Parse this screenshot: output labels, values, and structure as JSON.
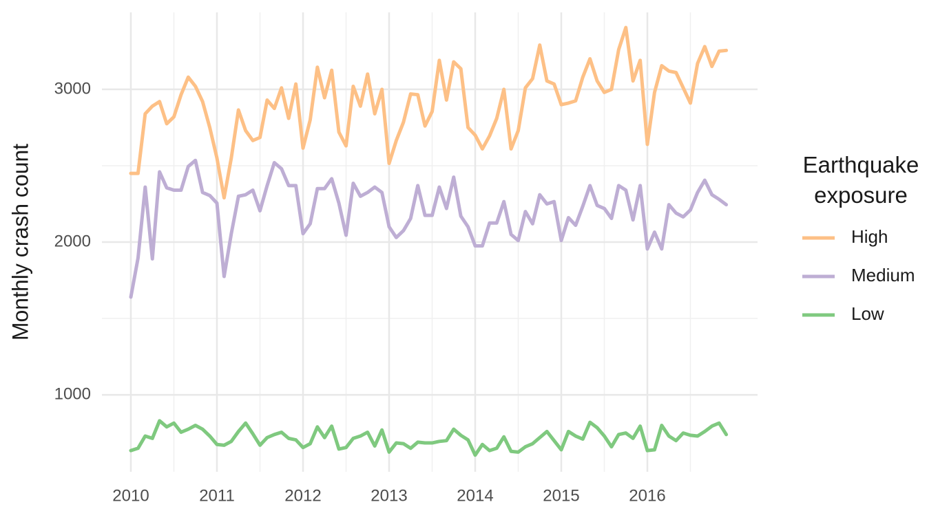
{
  "chart_data": {
    "type": "line",
    "ylabel": "Monthly crash count",
    "legend_title": "Earthquake exposure",
    "legend_position": "right",
    "grid": true,
    "xlim": [
      2009.664,
      2017.28
    ],
    "xticks": [
      2010,
      2011,
      2012,
      2013,
      2014,
      2015,
      2016
    ],
    "xminorticks": [
      2010.5,
      2011.5,
      2012.5,
      2013.5,
      2014.5,
      2015.5,
      2016.5
    ],
    "ylim": [
      496,
      3504
    ],
    "yticks": [
      1000,
      2000,
      3000
    ],
    "yminorticks": [
      1500,
      2500
    ],
    "x": [
      2010,
      2010.0833,
      2010.1667,
      2010.25,
      2010.3333,
      2010.4167,
      2010.5,
      2010.5833,
      2010.6667,
      2010.75,
      2010.8333,
      2010.9167,
      2011,
      2011.0833,
      2011.1667,
      2011.25,
      2011.3333,
      2011.4167,
      2011.5,
      2011.5833,
      2011.6667,
      2011.75,
      2011.8333,
      2011.9167,
      2012,
      2012.0833,
      2012.1667,
      2012.25,
      2012.3333,
      2012.4167,
      2012.5,
      2012.5833,
      2012.6667,
      2012.75,
      2012.8333,
      2012.9167,
      2013,
      2013.0833,
      2013.1667,
      2013.25,
      2013.3333,
      2013.4167,
      2013.5,
      2013.5833,
      2013.6667,
      2013.75,
      2013.8333,
      2013.9167,
      2014,
      2014.0833,
      2014.1667,
      2014.25,
      2014.3333,
      2014.4167,
      2014.5,
      2014.5833,
      2014.6667,
      2014.75,
      2014.8333,
      2014.9167,
      2015,
      2015.0833,
      2015.1667,
      2015.25,
      2015.3333,
      2015.4167,
      2015.5,
      2015.5833,
      2015.6667,
      2015.75,
      2015.8333,
      2015.9167,
      2016,
      2016.0833,
      2016.1667,
      2016.25,
      2016.3333,
      2016.4167,
      2016.5,
      2016.5833,
      2016.6667,
      2016.75,
      2016.8333,
      2016.9167
    ],
    "series": [
      {
        "name": "High",
        "color": "#fdc086",
        "values": [
          2450,
          2450,
          2840,
          2890,
          2920,
          2775,
          2820,
          2965,
          3080,
          3020,
          2920,
          2750,
          2550,
          2290,
          2550,
          2865,
          2730,
          2665,
          2685,
          2930,
          2875,
          3010,
          2810,
          3035,
          2615,
          2800,
          3145,
          2945,
          3125,
          2720,
          2630,
          3020,
          2890,
          3100,
          2840,
          3000,
          2515,
          2665,
          2785,
          2970,
          2965,
          2760,
          2855,
          3190,
          2930,
          3180,
          3135,
          2750,
          2700,
          2610,
          2695,
          2810,
          3000,
          2610,
          2730,
          3010,
          3070,
          3290,
          3055,
          3035,
          2900,
          2910,
          2925,
          3080,
          3200,
          3055,
          2980,
          3000,
          3260,
          3405,
          3055,
          3190,
          2640,
          2980,
          3155,
          3120,
          3110,
          3010,
          2910,
          3170,
          3280,
          3150,
          3250,
          3255
        ]
      },
      {
        "name": "Medium",
        "color": "#beaed4",
        "values": [
          1640,
          1895,
          2360,
          1890,
          2460,
          2355,
          2340,
          2340,
          2495,
          2535,
          2325,
          2305,
          2255,
          1775,
          2055,
          2300,
          2310,
          2340,
          2205,
          2370,
          2520,
          2480,
          2370,
          2370,
          2055,
          2120,
          2350,
          2350,
          2415,
          2255,
          2045,
          2385,
          2300,
          2325,
          2360,
          2325,
          2100,
          2030,
          2075,
          2155,
          2370,
          2175,
          2175,
          2360,
          2220,
          2425,
          2170,
          2100,
          1975,
          1975,
          2125,
          2125,
          2265,
          2050,
          2010,
          2200,
          2120,
          2310,
          2250,
          2265,
          2010,
          2160,
          2110,
          2235,
          2370,
          2240,
          2220,
          2155,
          2370,
          2340,
          2145,
          2370,
          1955,
          2065,
          1955,
          2245,
          2190,
          2165,
          2210,
          2325,
          2405,
          2310,
          2280,
          2245
        ]
      },
      {
        "name": "Low",
        "color": "#7fc97f",
        "values": [
          635,
          650,
          730,
          715,
          830,
          790,
          815,
          755,
          775,
          800,
          775,
          730,
          675,
          670,
          695,
          760,
          815,
          745,
          670,
          720,
          740,
          755,
          715,
          705,
          655,
          680,
          790,
          720,
          795,
          645,
          655,
          715,
          730,
          755,
          665,
          770,
          625,
          685,
          680,
          650,
          690,
          685,
          685,
          695,
          700,
          775,
          735,
          705,
          605,
          675,
          635,
          650,
          725,
          630,
          625,
          660,
          680,
          720,
          760,
          700,
          640,
          760,
          730,
          710,
          820,
          785,
          730,
          660,
          740,
          750,
          715,
          795,
          635,
          640,
          800,
          730,
          700,
          750,
          735,
          730,
          760,
          795,
          815,
          740
        ]
      }
    ]
  }
}
